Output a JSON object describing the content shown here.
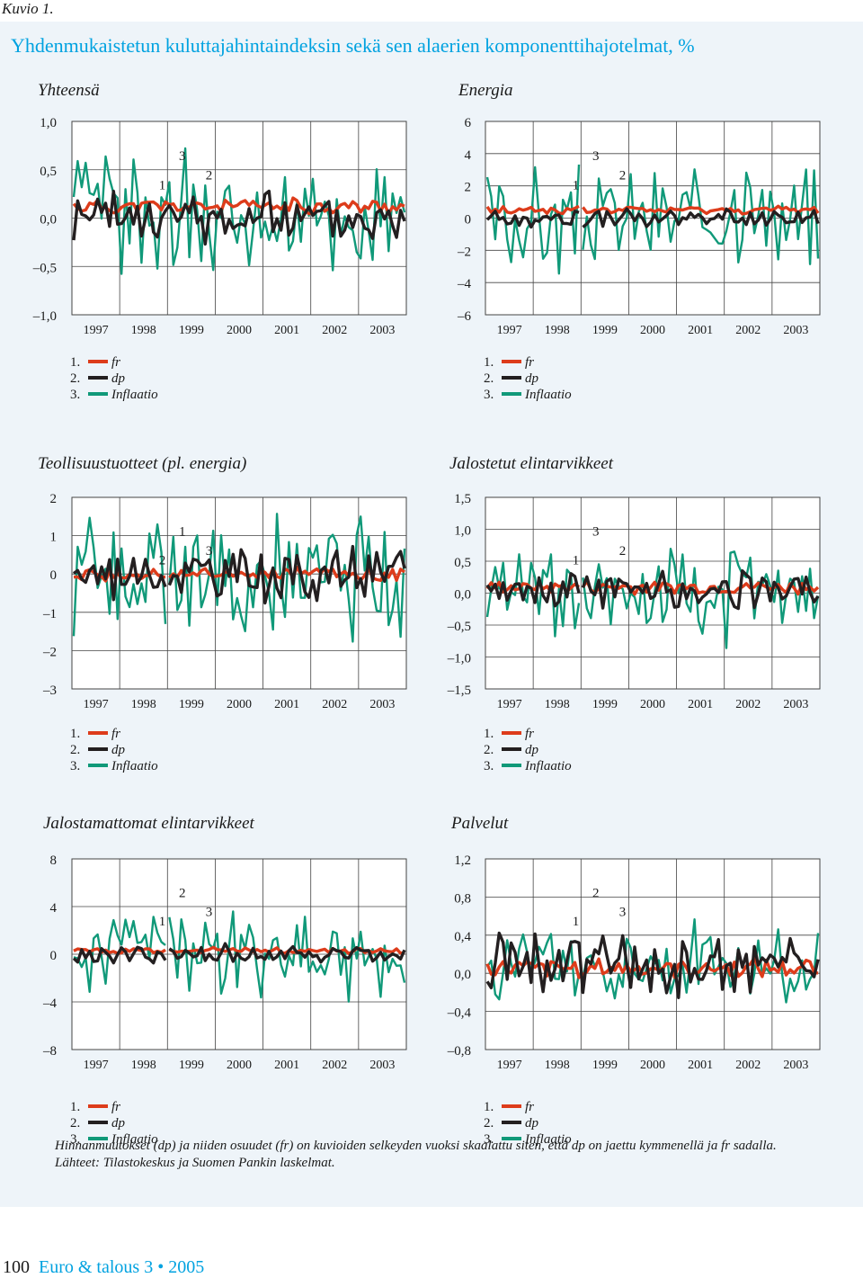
{
  "header": {
    "figure_label": "Kuvio 1."
  },
  "title": "Yhdenmukaistetun kuluttajahintaindeksin sekä sen alaerien komponenttihajotelmat, %",
  "legend": [
    {
      "num": "1.",
      "label": "fr",
      "color": "#dd3c1b"
    },
    {
      "num": "2.",
      "label": "dp",
      "color": "#231f20"
    },
    {
      "num": "3.",
      "label": "Inflaatio",
      "color": "#109979"
    }
  ],
  "notes": {
    "line1": "Hinnanmuutokset (dp) ja niiden osuudet (fr) on kuvioiden selkeyden vuoksi skaalattu siten, että dp on jaettu kymmenellä ja fr sadalla.",
    "line2": "Lähteet: Tilastokeskus ja Suomen Pankin laskelmat."
  },
  "footer": {
    "page": "100",
    "publication": "Euro & talous 3 • 2005"
  },
  "chart_data": [
    {
      "type": "line",
      "title": "Yhteensä",
      "x_ticks": [
        "1997",
        "1998",
        "1999",
        "2000",
        "2001",
        "2002",
        "2003"
      ],
      "y_ticks": [
        "1,0",
        "0,5",
        "0,0",
        "–0,5",
        "–1,0"
      ],
      "ylim": [
        -1.0,
        1.0
      ],
      "series": [
        {
          "name": "fr",
          "amp": 0.1,
          "base": 0.12,
          "seed": 11,
          "gap": 0
        },
        {
          "name": "dp",
          "amp": 0.32,
          "base": 0.0,
          "seed": 23,
          "gap": 0
        },
        {
          "name": "Inflaatio",
          "amp": 0.75,
          "base": 0.0,
          "seed": 37,
          "gap": 0
        }
      ],
      "annotations": [
        "1",
        "3",
        "2"
      ]
    },
    {
      "type": "line",
      "title": "Energia",
      "x_ticks": [
        "1997",
        "1998",
        "1999",
        "2000",
        "2001",
        "2002",
        "2003"
      ],
      "y_ticks": [
        "6",
        "4",
        "2",
        "0",
        "–2",
        "–4",
        "–6"
      ],
      "ylim": [
        -6,
        6
      ],
      "series": [
        {
          "name": "fr",
          "amp": 0.3,
          "base": 0.5,
          "seed": 41,
          "gap": 1
        },
        {
          "name": "dp",
          "amp": 0.7,
          "base": 0.0,
          "seed": 53,
          "gap": 1
        },
        {
          "name": "Inflaatio",
          "amp": 4.0,
          "base": 0.0,
          "seed": 67,
          "gap": 1
        }
      ],
      "annotations": [
        "1",
        "3",
        "2"
      ]
    },
    {
      "type": "line",
      "title": "Teollisuustuotteet (pl. energia)",
      "x_ticks": [
        "1997",
        "1998",
        "1999",
        "2000",
        "2001",
        "2002",
        "2003"
      ],
      "y_ticks": [
        "2",
        "1",
        "0",
        "–1",
        "–2",
        "–3"
      ],
      "ylim": [
        -3,
        2
      ],
      "series": [
        {
          "name": "fr",
          "amp": 0.2,
          "base": 0.0,
          "seed": 71,
          "gap": 1
        },
        {
          "name": "dp",
          "amp": 0.8,
          "base": 0.0,
          "seed": 83,
          "gap": 1
        },
        {
          "name": "Inflaatio",
          "amp": 2.2,
          "base": 0.0,
          "seed": 97,
          "gap": 1
        }
      ],
      "annotations": [
        "2",
        "1",
        "3"
      ]
    },
    {
      "type": "line",
      "title": "Jalostetut elintarvikkeet",
      "x_ticks": [
        "1997",
        "1998",
        "1999",
        "2000",
        "2001",
        "2002",
        "2003"
      ],
      "y_ticks": [
        "1,5",
        "1,0",
        "0,5",
        "0,0",
        "–0,5",
        "–1,0",
        "–1,5"
      ],
      "ylim": [
        -1.5,
        1.5
      ],
      "series": [
        {
          "name": "fr",
          "amp": 0.12,
          "base": 0.1,
          "seed": 101,
          "gap": 1
        },
        {
          "name": "dp",
          "amp": 0.35,
          "base": 0.05,
          "seed": 113,
          "gap": 1
        },
        {
          "name": "Inflaatio",
          "amp": 0.9,
          "base": 0.0,
          "seed": 127,
          "gap": 1
        }
      ],
      "annotations": [
        "1",
        "3",
        "2"
      ]
    },
    {
      "type": "line",
      "title": "Jalostamattomat elintarvikkeet",
      "x_ticks": [
        "1997",
        "1998",
        "1999",
        "2000",
        "2001",
        "2002",
        "2003"
      ],
      "y_ticks": [
        "8",
        "4",
        "0",
        "–4",
        "–8"
      ],
      "ylim": [
        -8,
        8
      ],
      "series": [
        {
          "name": "fr",
          "amp": 0.3,
          "base": 0.3,
          "seed": 131,
          "gap": 1
        },
        {
          "name": "dp",
          "amp": 0.9,
          "base": 0.0,
          "seed": 149,
          "gap": 1
        },
        {
          "name": "Inflaatio",
          "amp": 4.5,
          "base": 0.0,
          "seed": 157,
          "gap": 1
        }
      ],
      "annotations": [
        "1",
        "2",
        "3"
      ]
    },
    {
      "type": "line",
      "title": "Palvelut",
      "x_ticks": [
        "1997",
        "1998",
        "1999",
        "2000",
        "2001",
        "2002",
        "2003"
      ],
      "y_ticks": [
        "1,2",
        "0,8",
        "0,4",
        "0,0",
        "–0,4",
        "–0,8"
      ],
      "ylim": [
        -0.8,
        1.2
      ],
      "series": [
        {
          "name": "fr",
          "amp": 0.12,
          "base": 0.05,
          "seed": 163,
          "gap": 0
        },
        {
          "name": "dp",
          "amp": 0.4,
          "base": 0.1,
          "seed": 173,
          "gap": 0
        },
        {
          "name": "Inflaatio",
          "amp": 0.55,
          "base": 0.1,
          "seed": 181,
          "gap": 0
        }
      ],
      "annotations": [
        "1",
        "2",
        "3"
      ]
    }
  ]
}
